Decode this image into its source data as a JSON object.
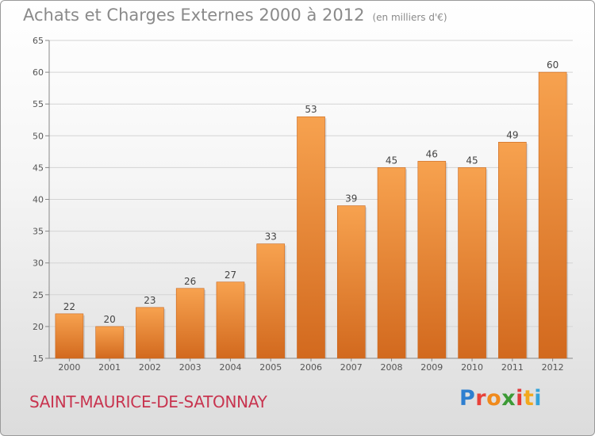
{
  "header": {
    "title": "Achats et Charges Externes 2000 à 2012",
    "unit": "(en milliers d'€)"
  },
  "footer": {
    "commune": "SAINT-MAURICE-DE-SATONNAY",
    "logo_letters": [
      "P",
      "r",
      "o",
      "x",
      "i",
      "t",
      "i"
    ],
    "logo_colors": [
      "#2e7fd0",
      "#e8423a",
      "#f08a1c",
      "#3c9a35",
      "#e23a3a",
      "#f2a81d",
      "#34a3d9"
    ]
  },
  "chart_data": {
    "type": "bar",
    "categories": [
      "2000",
      "2001",
      "2002",
      "2003",
      "2004",
      "2005",
      "2006",
      "2007",
      "2008",
      "2009",
      "2010",
      "2011",
      "2012"
    ],
    "values": [
      22,
      20,
      23,
      26,
      27,
      33,
      53,
      39,
      45,
      46,
      45,
      49,
      60
    ],
    "data_labels": [
      "22",
      "20",
      "23",
      "26",
      "27",
      "33",
      "53",
      "39",
      "45",
      "46",
      "45",
      "49",
      "60"
    ],
    "title": "Achats et Charges Externes 2000 à 2012",
    "xlabel": "",
    "ylabel": "",
    "ylim": [
      15,
      65
    ],
    "yticks": [
      15,
      20,
      25,
      30,
      35,
      40,
      45,
      50,
      55,
      60,
      65
    ],
    "grid": true,
    "bar_color_top": "#f7a24f",
    "bar_color_bottom": "#d2691e"
  }
}
